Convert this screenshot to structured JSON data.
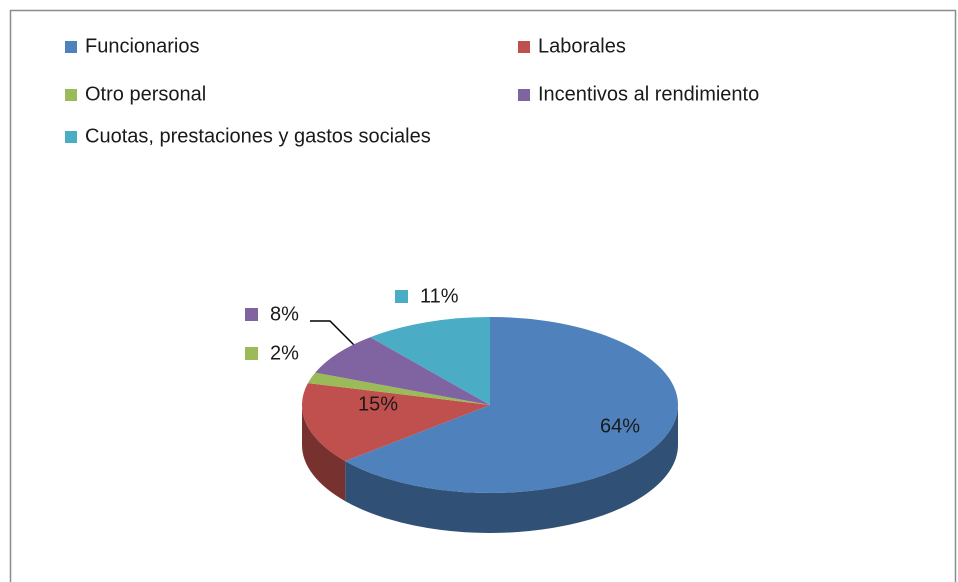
{
  "chart_data": {
    "type": "pie",
    "categories": [
      "Funcionarios",
      "Laborales",
      "Otro personal",
      "Incentivos al rendimiento",
      "Cuotas, prestaciones y gastos sociales"
    ],
    "values": [
      64,
      15,
      2,
      8,
      11
    ],
    "value_labels": [
      "64%",
      "15%",
      "2%",
      "8%",
      "11%"
    ],
    "colors": [
      "#4f81bd",
      "#c0504d",
      "#9bbb59",
      "#8064a2",
      "#4bacc6"
    ],
    "legend": "top"
  }
}
